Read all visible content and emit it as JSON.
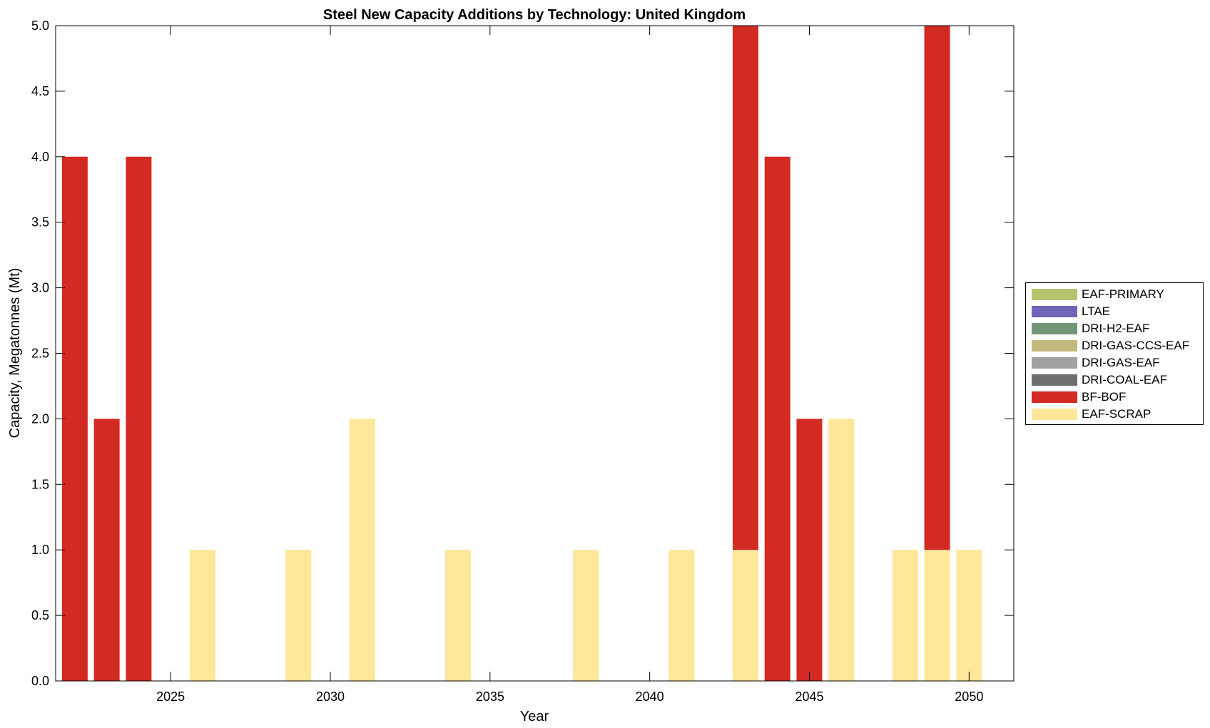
{
  "chart_data": {
    "type": "bar",
    "stacked": true,
    "title": "Steel New Capacity Additions by Technology: United Kingdom",
    "xlabel": "Year",
    "ylabel": "Capacity, Megatonnes (Mt)",
    "ylim": [
      0,
      5
    ],
    "xlim": [
      2021.4,
      2051.4
    ],
    "xticks": [
      2025,
      2030,
      2035,
      2040,
      2045,
      2050
    ],
    "yticks": [
      0.0,
      0.5,
      1.0,
      1.5,
      2.0,
      2.5,
      3.0,
      3.5,
      4.0,
      4.5,
      5.0
    ],
    "legend_position": "right",
    "x": [
      2022,
      2023,
      2024,
      2025,
      2026,
      2027,
      2028,
      2029,
      2030,
      2031,
      2032,
      2033,
      2034,
      2035,
      2036,
      2037,
      2038,
      2039,
      2040,
      2041,
      2042,
      2043,
      2044,
      2045,
      2046,
      2047,
      2048,
      2049,
      2050
    ],
    "series": [
      {
        "name": "EAF-SCRAP",
        "color": "#FFE699",
        "values": [
          0,
          0,
          0,
          0,
          1,
          0,
          0,
          1,
          0,
          2,
          0,
          0,
          1,
          0,
          0,
          0,
          1,
          0,
          0,
          1,
          0,
          1,
          0,
          0,
          2,
          0,
          1,
          1,
          1
        ]
      },
      {
        "name": "BF-BOF",
        "color": "#D32A23",
        "values": [
          4,
          2,
          4,
          0,
          0,
          0,
          0,
          0,
          0,
          0,
          0,
          0,
          0,
          0,
          0,
          0,
          0,
          0,
          0,
          0,
          0,
          4,
          4,
          2,
          0,
          0,
          0,
          4,
          0
        ]
      },
      {
        "name": "DRI-COAL-EAF",
        "color": "#6E6E6E",
        "values": [
          0,
          0,
          0,
          0,
          0,
          0,
          0,
          0,
          0,
          0,
          0,
          0,
          0,
          0,
          0,
          0,
          0,
          0,
          0,
          0,
          0,
          0,
          0,
          0,
          0,
          0,
          0,
          0,
          0
        ]
      },
      {
        "name": "DRI-GAS-EAF",
        "color": "#A0A0A0",
        "values": [
          0,
          0,
          0,
          0,
          0,
          0,
          0,
          0,
          0,
          0,
          0,
          0,
          0,
          0,
          0,
          0,
          0,
          0,
          0,
          0,
          0,
          0,
          0,
          0,
          0,
          0,
          0,
          0,
          0
        ]
      },
      {
        "name": "DRI-GAS-CCS-EAF",
        "color": "#C2BA7D",
        "values": [
          0,
          0,
          0,
          0,
          0,
          0,
          0,
          0,
          0,
          0,
          0,
          0,
          0,
          0,
          0,
          0,
          0,
          0,
          0,
          0,
          0,
          0,
          0,
          0,
          0,
          0,
          0,
          0,
          0
        ]
      },
      {
        "name": "DRI-H2-EAF",
        "color": "#739577",
        "values": [
          0,
          0,
          0,
          0,
          0,
          0,
          0,
          0,
          0,
          0,
          0,
          0,
          0,
          0,
          0,
          0,
          0,
          0,
          0,
          0,
          0,
          0,
          0,
          0,
          0,
          0,
          0,
          0,
          0
        ]
      },
      {
        "name": "LTAE",
        "color": "#6F66B5",
        "values": [
          0,
          0,
          0,
          0,
          0,
          0,
          0,
          0,
          0,
          0,
          0,
          0,
          0,
          0,
          0,
          0,
          0,
          0,
          0,
          0,
          0,
          0,
          0,
          0,
          0,
          0,
          0,
          0,
          0
        ]
      },
      {
        "name": "EAF-PRIMARY",
        "color": "#B5C56D",
        "values": [
          0,
          0,
          0,
          0,
          0,
          0,
          0,
          0,
          0,
          0,
          0,
          0,
          0,
          0,
          0,
          0,
          0,
          0,
          0,
          0,
          0,
          0,
          0,
          0,
          0,
          0,
          0,
          0,
          0
        ]
      }
    ],
    "legend_order": [
      "EAF-PRIMARY",
      "LTAE",
      "DRI-H2-EAF",
      "DRI-GAS-CCS-EAF",
      "DRI-GAS-EAF",
      "DRI-COAL-EAF",
      "BF-BOF",
      "EAF-SCRAP"
    ]
  }
}
